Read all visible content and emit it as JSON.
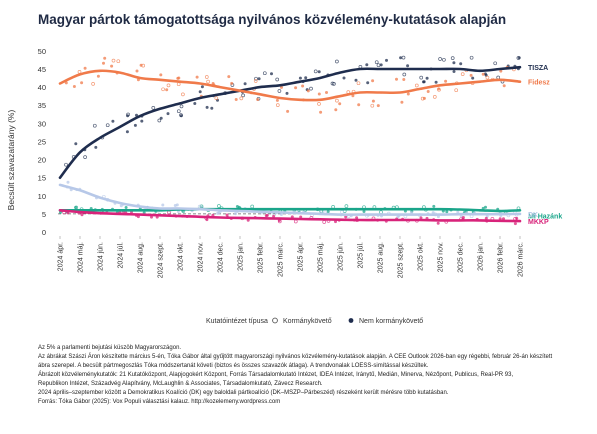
{
  "chart_data": {
    "type": "line",
    "title": "Magyar pártok támogatottsága nyilvános közvélemény-kutatások alapján",
    "ylabel": "Becsült szavazatarány (%)",
    "xlabel": "",
    "ylim": [
      0,
      53
    ],
    "yticks": [
      0,
      5,
      10,
      15,
      20,
      25,
      30,
      35,
      40,
      45,
      50
    ],
    "categories": [
      "2024 ápr.",
      "2024 máj.",
      "2024 jún.",
      "2024 júl.",
      "2024 aug.",
      "2024 szept.",
      "2024 okt.",
      "2024 nov.",
      "2024 dec.",
      "2025 jan.",
      "2025 febr.",
      "2025 márc.",
      "2025 ápr.",
      "2025 máj.",
      "2025 jún.",
      "2025 júl.",
      "2025 aug.",
      "2025 szept.",
      "2025 okt.",
      "2025 nov.",
      "2025 dec.",
      "2026 jan.",
      "2026 febr.",
      "2026 márc."
    ],
    "threshold": 5,
    "series": [
      {
        "name": "TISZA",
        "color": "#1f2d4e",
        "values": [
          15,
          22,
          26,
          29,
          32,
          34,
          35.5,
          37,
          38,
          39,
          40,
          40.5,
          41.5,
          42.5,
          44,
          45,
          45,
          45,
          45,
          45,
          45,
          44.5,
          45,
          45.5
        ]
      },
      {
        "name": "Fidesz",
        "color": "#f07a4a",
        "values": [
          41,
          43.5,
          44.5,
          44,
          42.5,
          42,
          41.5,
          41,
          40,
          39,
          38,
          37,
          36.5,
          36.5,
          37.5,
          38.5,
          38.5,
          38.5,
          39.5,
          40.5,
          41,
          41.5,
          42,
          41.5
        ]
      },
      {
        "name": "Mi Hazánk",
        "color": "#1aa58a",
        "values": [
          6,
          6,
          6,
          6,
          6,
          6,
          6.2,
          6.3,
          6.3,
          6.3,
          6.3,
          6.3,
          6.3,
          6.3,
          6.3,
          6.3,
          6.3,
          6.3,
          6.3,
          6.3,
          6.2,
          6,
          5.8,
          6
        ]
      },
      {
        "name": "DK",
        "color": "#b7c8e8",
        "values": [
          13,
          11.5,
          9.5,
          8,
          7,
          6.5,
          6.5,
          6.3,
          6,
          5.8,
          5.6,
          5.4,
          5.2,
          5,
          4.8,
          4.8,
          4.8,
          4.8,
          4.8,
          4.8,
          4.9,
          4.9,
          4.9,
          5
        ]
      },
      {
        "name": "MKKP",
        "color": "#d8237a",
        "values": [
          6,
          5.5,
          5.2,
          5,
          4.8,
          4.6,
          4.4,
          4.2,
          4,
          3.9,
          3.8,
          3.7,
          3.6,
          3.5,
          3.4,
          3.3,
          3.3,
          3.3,
          3.3,
          3.2,
          3.2,
          3.2,
          3.1,
          3
        ]
      }
    ],
    "legend": {
      "title": "Kutatóintézet típusa",
      "items": [
        {
          "label": "Kormánykövető",
          "marker": "hollow-circle"
        },
        {
          "label": "Nem kormánykövető",
          "marker": "filled-circle"
        }
      ],
      "placement": "bottom"
    },
    "grid": false
  },
  "notes": [
    "Az 5% a parlamenti bejutási küszöb Magyarországon.",
    "Az ábrákat Szászi Áron készítette március 5-én, Tóka Gábor által gyűjtött magyarországi nyilvános közvélemény-kutatások alapján. A CEE Outlook 2026-ban egy régebbi, február 26-án készített",
    "ábra szerepel. A becsült pártmegoszlás Tóka módszertanát követi (biztos és összes szavazók átlaga). A trendvonalak LOESS-simítással készültek.",
    "Ábrázolt közvéleménykutatók: 21 Kutatóközpont, Alapjogokért Központ, Forrás Társadalomkutató Intézet, IDEA Intézet, Iránytű, Medián, Minerva, Nézőpont, Publicus, Real-PR 93,",
    "Republikon Intézet, Századvég Alapítvány, McLaughlin & Associates, Társadalomkutató, Závecz Research.",
    "2024 április–szeptember között a Demokratikus Koalíció (DK) egy baloldali pártkoalíció (DK–MSZP–Párbeszéd) részeként került mérésre több kutatásban.",
    "Forrás: Tóka Gábor (2025): Vox Populi választási kalauz. http://kozelemeny.wordpress.com"
  ]
}
